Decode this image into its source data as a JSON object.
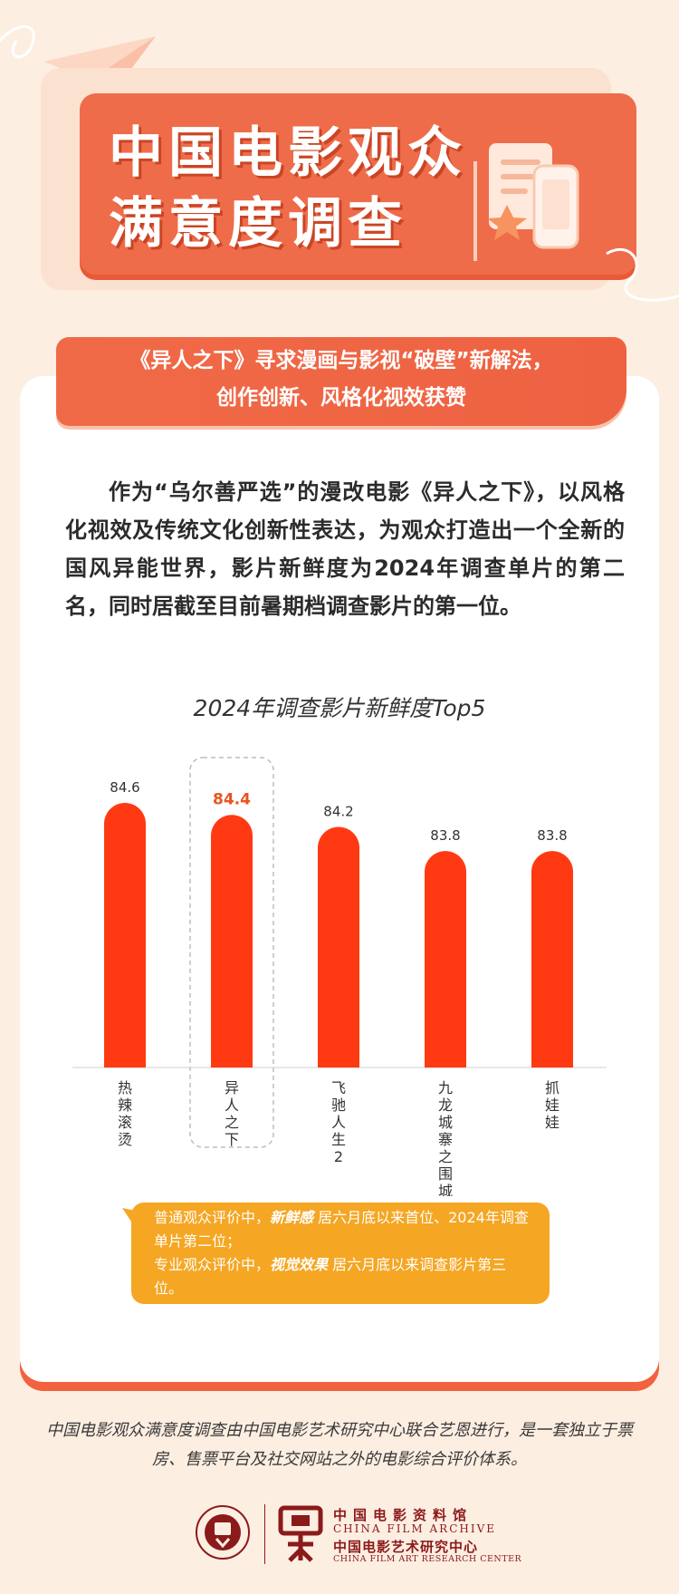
{
  "header": {
    "title_line1": "中国电影观众",
    "title_line2": "满意度调查"
  },
  "banner": {
    "line1": "《异人之下》寻求漫画与影视“破壁”新解法，",
    "line2": "创作创新、风格化视效获赞"
  },
  "intro_paragraph": "作为“乌尔善严选”的漫改电影《异人之下》，以风格化视效及传统文化创新性表达，为观众打造出一个全新的国风异能世界，影片新鲜度为2024年调查单片的第二名，同时居截至目前暑期档调查影片的第一位。",
  "chart_data": {
    "type": "bar",
    "title": "2024年调查影片新鲜度Top5",
    "categories": [
      "热辣滚烫",
      "异人之下",
      "飞驰人生2",
      "九龙城寨之围城",
      "抓娃娃"
    ],
    "values": [
      84.6,
      84.4,
      84.2,
      83.8,
      83.8
    ],
    "value_labels": [
      "84.6",
      "84.4",
      "84.2",
      "83.8",
      "83.8"
    ],
    "highlighted_category": "异人之下",
    "bar_color": "#ff3a12",
    "highlight_label_color": "#e8541f",
    "xlabel": "",
    "ylabel": ""
  },
  "callout": {
    "line1_prefix": "普通观众评价中，",
    "line1_emphasis": "新鲜感",
    "line1_suffix": " 居六月底以来首位、2024年调查单片第二位；",
    "line2_prefix": "专业观众评价中，",
    "line2_emphasis": "视觉效果",
    "line2_suffix": " 居六月底以来调查影片第三位。"
  },
  "footer": {
    "text": "中国电影观众满意度调查由中国电影艺术研究中心联合艺恩进行，是一套独立于票房、售票平台及社交网站之外的电影综合评价体系。",
    "logo_cn_1": "中国电影资料馆",
    "logo_en_1": "CHINA FILM ARCHIVE",
    "logo_cn_2": "中国电影艺术研究中心",
    "logo_en_2": "CHINA FILM ART RESEARCH CENTER"
  },
  "colors": {
    "background": "#fdeee2",
    "accent": "#ef6c4a",
    "callout": "#f5a623",
    "logo": "#8b1a1a"
  }
}
